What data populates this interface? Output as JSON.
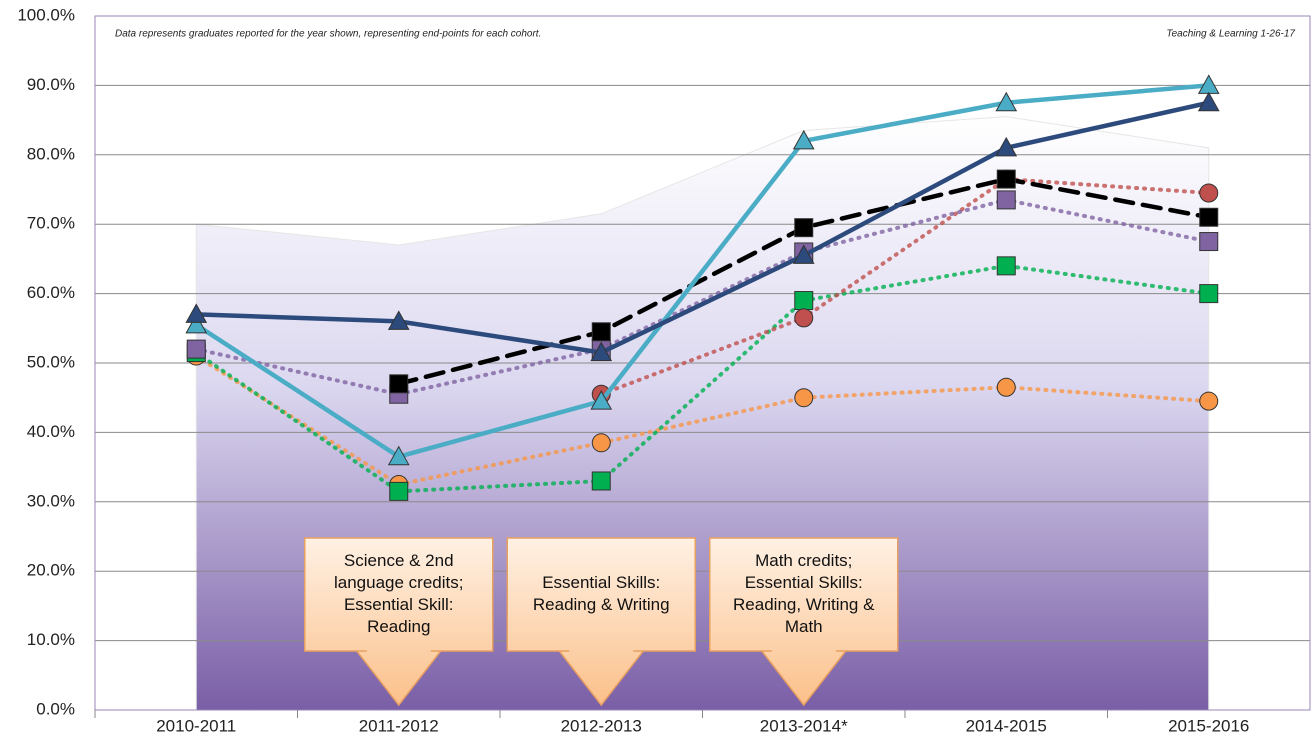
{
  "chart_data": {
    "type": "line",
    "notes": [
      "Data represents graduates reported for the year shown, representing end-points for each cohort.",
      "Teaching & Learning 1-26-17"
    ],
    "categories": [
      "2010-2011",
      "2011-2012",
      "2012-2013",
      "2013-2014*",
      "2014-2015",
      "2015-2016"
    ],
    "ylim": [
      0,
      100
    ],
    "yticks": [
      {
        "value": 0,
        "label": "0.0%"
      },
      {
        "value": 10,
        "label": "10.0%"
      },
      {
        "value": 20,
        "label": "20.0%"
      },
      {
        "value": 30,
        "label": "30.0%"
      },
      {
        "value": 40,
        "label": "40.0%"
      },
      {
        "value": 50,
        "label": "50.0%"
      },
      {
        "value": 60,
        "label": "60.0%"
      },
      {
        "value": 70,
        "label": "70.0%"
      },
      {
        "value": 80,
        "label": "80.0%"
      },
      {
        "value": 90,
        "label": "90.0%"
      },
      {
        "value": {
          "value": 100,
          "label": "100.0%"
        },
        "label": "100.0%"
      }
    ],
    "grid": true,
    "area": {
      "color": "#7a5ea6",
      "values": [
        70,
        67,
        71.5,
        83.5,
        85.5,
        81
      ]
    },
    "series": [
      {
        "color": "#f79646",
        "marker": "circle",
        "dash": "dot",
        "values": [
          51,
          32.5,
          38.5,
          45,
          46.5,
          44.5
        ]
      },
      {
        "color": "#00b050",
        "marker": "square",
        "dash": "dot",
        "values": [
          51.5,
          31.5,
          33,
          59,
          64,
          60
        ]
      },
      {
        "color": "#c0504d",
        "marker": "circle",
        "dash": "dot",
        "values": [
          null,
          null,
          45.5,
          56.5,
          76.5,
          74.5
        ]
      },
      {
        "color": "#8064a2",
        "marker": "square",
        "dash": "dot",
        "values": [
          52,
          45.5,
          52,
          66,
          73.5,
          67.5
        ]
      },
      {
        "color": "#000000",
        "marker": "square",
        "dash": "dash",
        "values": [
          null,
          47,
          54.5,
          69.5,
          76.5,
          71
        ]
      },
      {
        "color": "#4bacc6",
        "marker": "triangle",
        "dash": "solid",
        "values": [
          55.5,
          36.5,
          44.5,
          82,
          87.5,
          90
        ]
      },
      {
        "color": "#2c4a7c",
        "marker": "triangle",
        "dash": "solid",
        "values": [
          57,
          56,
          51.5,
          65.5,
          81,
          87.5
        ]
      }
    ],
    "callouts": [
      {
        "category": 1,
        "lines": [
          "Science & 2nd",
          "language credits;",
          "Essential Skill:",
          "Reading"
        ]
      },
      {
        "category": 2,
        "lines": [
          "Essential Skills:",
          "Reading & Writing"
        ]
      },
      {
        "category": 3,
        "lines": [
          "Math credits;",
          "Essential Skills:",
          "Reading, Writing &",
          "Math"
        ]
      }
    ]
  }
}
